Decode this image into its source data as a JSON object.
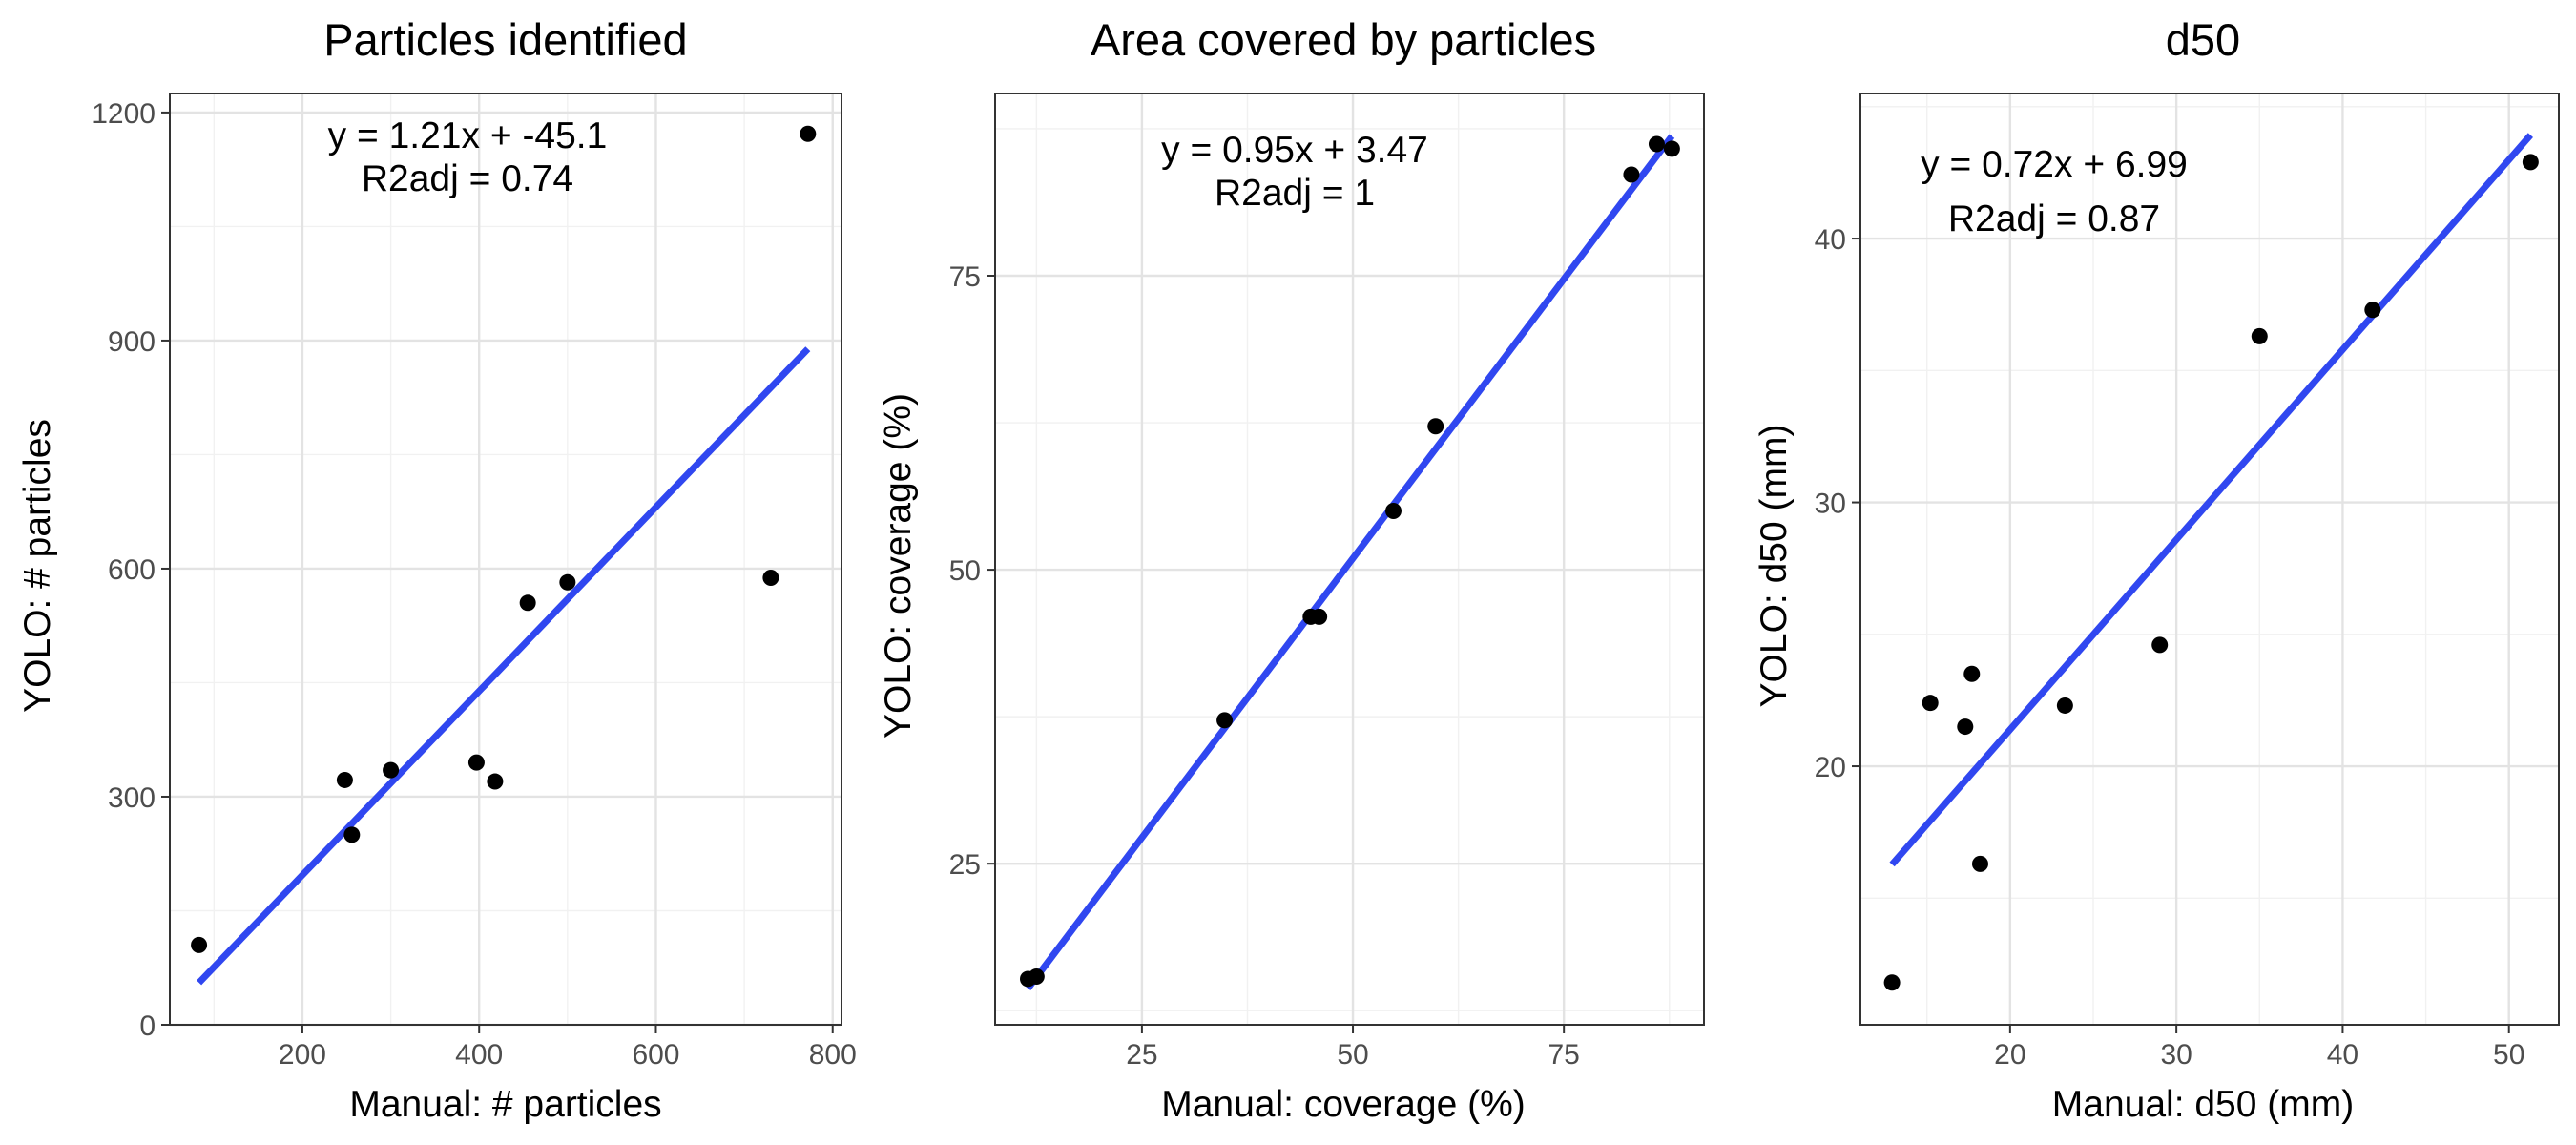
{
  "chart_data": [
    {
      "type": "scatter",
      "title": "Particles identified",
      "xlabel": "Manual: # particles",
      "ylabel": "YOLO: # particles",
      "xlim": [
        50,
        810
      ],
      "ylim": [
        0,
        1225
      ],
      "x_ticks": [
        200,
        400,
        600,
        800
      ],
      "y_ticks": [
        0,
        300,
        600,
        900,
        1200
      ],
      "grid": true,
      "series": [
        {
          "points": [
            [
              83,
              105
            ],
            [
              248,
              322
            ],
            [
              256,
              250
            ],
            [
              300,
              335
            ],
            [
              397,
              345
            ],
            [
              418,
              320
            ],
            [
              455,
              555
            ],
            [
              500,
              582
            ],
            [
              730,
              588
            ],
            [
              772,
              1172
            ]
          ]
        }
      ],
      "fit": {
        "type": "linear",
        "slope": 1.21,
        "intercept": -45.1,
        "x_range": [
          83,
          772
        ]
      },
      "annotation": [
        "y = 1.21x + -45.1",
        "R2adj = 0.74"
      ]
    },
    {
      "type": "scatter",
      "title": "Area covered by particles",
      "xlabel": "Manual: coverage (%)",
      "ylabel": "YOLO: coverage (%)",
      "xlim": [
        7.6,
        91.6
      ],
      "ylim": [
        11.3,
        90.5
      ],
      "x_ticks": [
        25,
        50,
        75
      ],
      "y_ticks": [
        25,
        50,
        75
      ],
      "grid": true,
      "series": [
        {
          "points": [
            [
              11.5,
              15.2
            ],
            [
              12.5,
              15.4
            ],
            [
              34.8,
              37.2
            ],
            [
              45.0,
              46.0
            ],
            [
              46.0,
              46.0
            ],
            [
              54.8,
              55.0
            ],
            [
              59.8,
              62.2
            ],
            [
              83.0,
              83.6
            ],
            [
              86.0,
              86.2
            ],
            [
              87.8,
              85.8
            ]
          ]
        }
      ],
      "fit": {
        "type": "linear",
        "slope": 0.95,
        "intercept": 3.47,
        "x_range": [
          11.5,
          87.8
        ]
      },
      "annotation": [
        "y = 0.95x + 3.47",
        "R2adj = 1"
      ]
    },
    {
      "type": "scatter",
      "title": "d50",
      "xlabel": "Manual: d50 (mm)",
      "ylabel": "YOLO: d50 (mm)",
      "xlim": [
        11.0,
        53.0
      ],
      "ylim": [
        10.2,
        45.5
      ],
      "x_ticks": [
        20,
        30,
        40,
        50
      ],
      "y_ticks": [
        20,
        30,
        40
      ],
      "grid": true,
      "series": [
        {
          "points": [
            [
              12.9,
              11.8
            ],
            [
              15.2,
              22.4
            ],
            [
              17.3,
              21.5
            ],
            [
              17.7,
              23.5
            ],
            [
              18.2,
              16.3
            ],
            [
              23.3,
              22.3
            ],
            [
              29.0,
              24.6
            ],
            [
              35.0,
              36.3
            ],
            [
              41.8,
              37.3
            ],
            [
              51.3,
              42.9
            ]
          ]
        }
      ],
      "fit": {
        "type": "linear",
        "slope": 0.72,
        "intercept": 6.99,
        "x_range": [
          12.9,
          51.3
        ]
      },
      "annotation": [
        "y = 0.72x + 6.99",
        "R2adj = 0.87"
      ]
    }
  ],
  "colors": {
    "fit_line": "#3047f0",
    "points": "#000000",
    "panel_background": "#ffffff",
    "frame": "#333333",
    "tick_label": "#4d4d4d"
  }
}
